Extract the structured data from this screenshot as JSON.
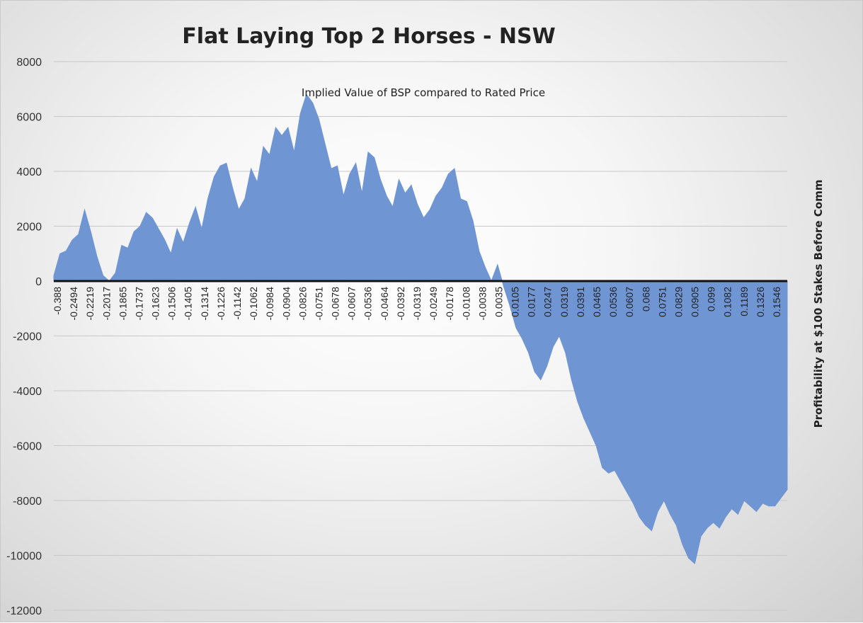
{
  "chart_data": {
    "type": "area",
    "title": "Flat Laying Top 2 Horses - NSW",
    "subtitle": "Implied Value of BSP compared to Rated Price",
    "xlabel": "",
    "ylabel": "Profitability at $100 Stakes Before Comm",
    "ylim": [
      -12000,
      8000
    ],
    "yticks": [
      8000,
      6000,
      4000,
      2000,
      0,
      -2000,
      -4000,
      -6000,
      -8000,
      -10000,
      -12000
    ],
    "grid": true,
    "legend": "none",
    "fill_color": "#6f95d3",
    "xtick_labels": [
      "-0.388",
      "-0.2494",
      "-0.2219",
      "-0.2017",
      "-0.1865",
      "-0.1737",
      "-0.1623",
      "-0.1506",
      "-0.1405",
      "-0.1314",
      "-0.1226",
      "-0.1142",
      "-0.1062",
      "-0.0984",
      "-0.0904",
      "-0.0826",
      "-0.0751",
      "-0.0678",
      "-0.0607",
      "-0.0536",
      "-0.0464",
      "-0.0392",
      "-0.0319",
      "-0.0249",
      "-0.0178",
      "-0.0108",
      "-0.0038",
      "0.0035",
      "0.0105",
      "0.0177",
      "0.0247",
      "0.0319",
      "0.0391",
      "0.0465",
      "0.0536",
      "0.0607",
      "0.068",
      "0.0751",
      "0.0829",
      "0.0905",
      "0.099",
      "0.1082",
      "0.1189",
      "0.1326",
      "0.1546"
    ],
    "values": [
      200,
      1000,
      1100,
      1500,
      1700,
      2600,
      1800,
      900,
      200,
      0,
      300,
      1300,
      1200,
      1800,
      2000,
      2500,
      2300,
      1900,
      1500,
      1000,
      1900,
      1400,
      2100,
      2700,
      1900,
      3000,
      3800,
      4200,
      4300,
      3400,
      2600,
      3000,
      4100,
      3600,
      4900,
      4600,
      5600,
      5300,
      5600,
      4700,
      6100,
      6800,
      6500,
      5900,
      5000,
      4100,
      4200,
      3100,
      3900,
      4300,
      3200,
      4700,
      4500,
      3700,
      3100,
      2700,
      3700,
      3200,
      3500,
      2800,
      2300,
      2600,
      3100,
      3400,
      3900,
      4100,
      3000,
      2900,
      2200,
      1100,
      500,
      0,
      600,
      -200,
      -900,
      -1700,
      -2100,
      -2600,
      -3300,
      -3600,
      -3100,
      -2400,
      -2000,
      -2600,
      -3600,
      -4400,
      -5000,
      -5500,
      -6000,
      -6800,
      -7000,
      -6900,
      -7300,
      -7700,
      -8100,
      -8600,
      -8900,
      -9100,
      -8400,
      -8000,
      -8500,
      -8900,
      -9600,
      -10100,
      -10300,
      -9300,
      -9000,
      -8800,
      -9000,
      -8600,
      -8300,
      -8500,
      -8000,
      -8200,
      -8400,
      -8100,
      -8200,
      -8200,
      -7900,
      -7600
    ]
  }
}
